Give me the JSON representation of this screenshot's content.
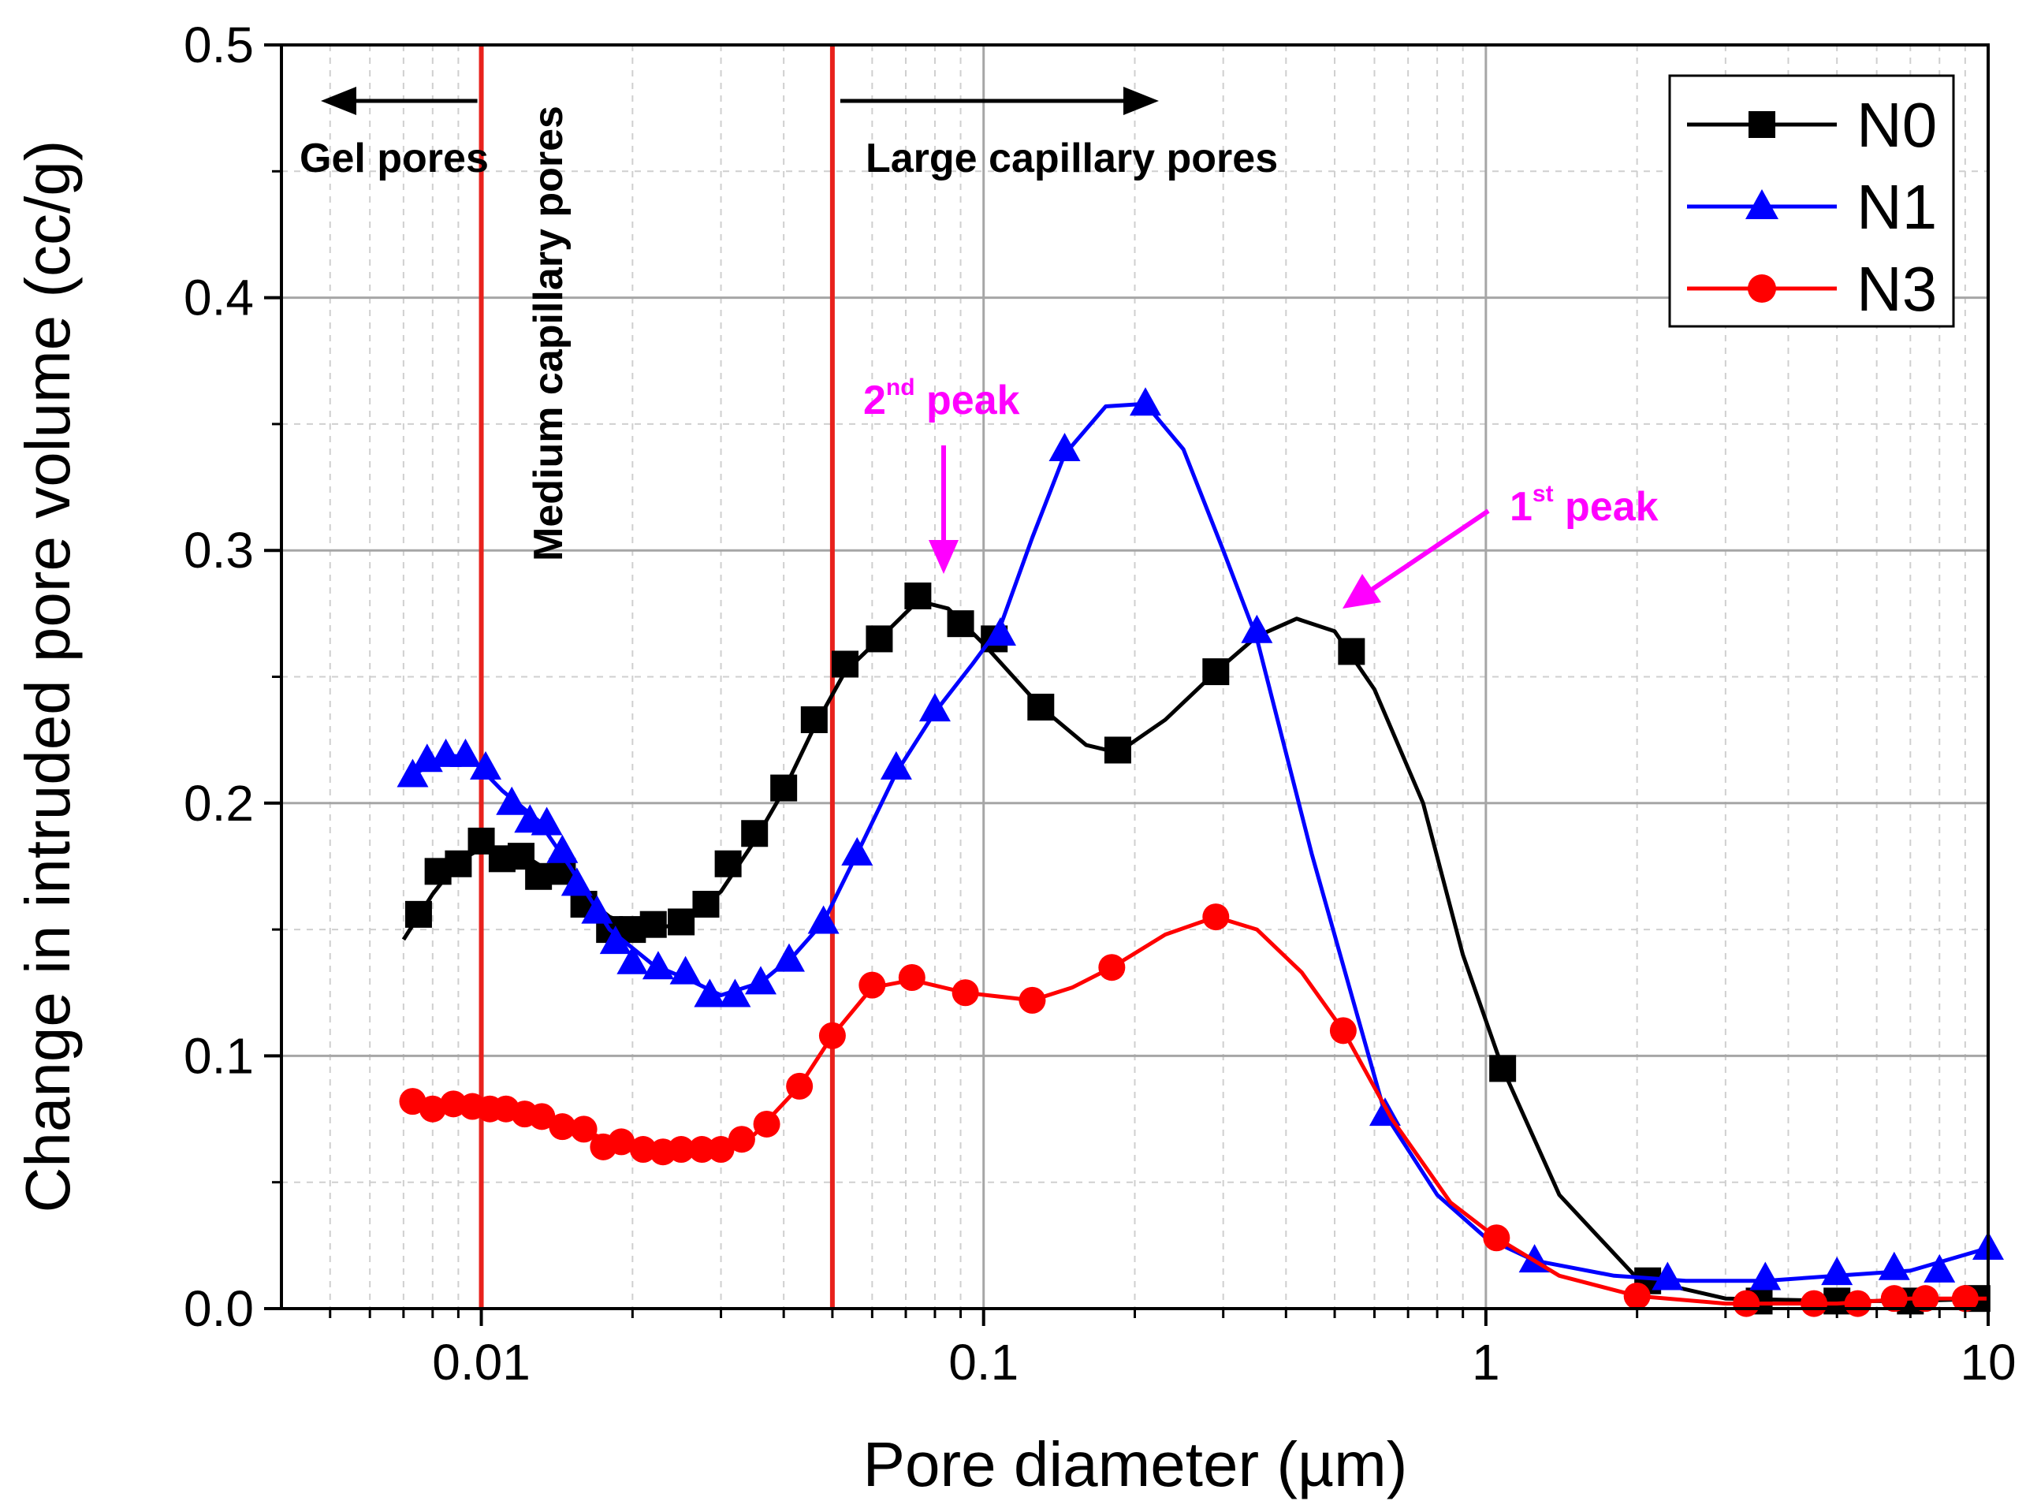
{
  "chart_data": {
    "type": "line",
    "title": "",
    "xlabel": "Pore diameter (µm)",
    "ylabel": "Change in intruded pore volume (cc/g)",
    "xscale": "log",
    "xlim": [
      0.004,
      10
    ],
    "ylim": [
      0.0,
      0.5
    ],
    "grid": true,
    "legend_position": "top-right",
    "x_tick_labels": [
      {
        "value": 0.01,
        "label": "0.01"
      },
      {
        "value": 0.1,
        "label": "0.1"
      },
      {
        "value": 1,
        "label": "1"
      },
      {
        "value": 10,
        "label": "10"
      }
    ],
    "y_tick_labels": [
      {
        "value": 0.0,
        "label": "0.0"
      },
      {
        "value": 0.1,
        "label": "0.1"
      },
      {
        "value": 0.2,
        "label": "0.2"
      },
      {
        "value": 0.3,
        "label": "0.3"
      },
      {
        "value": 0.4,
        "label": "0.4"
      },
      {
        "value": 0.5,
        "label": "0.5"
      }
    ],
    "boundaries": [
      {
        "x": 0.01,
        "color": "#e8211c"
      },
      {
        "x": 0.05,
        "color": "#e8211c"
      }
    ],
    "region_labels": {
      "gel": "Gel pores",
      "medium": "Medium capillary pores",
      "large": "Large capillary pores"
    },
    "peak_annotations": {
      "second": {
        "num": "2",
        "sup": "nd",
        "text": " peak",
        "color": "#ff00ff"
      },
      "first": {
        "num": "1",
        "sup": "st",
        "text": " peak",
        "color": "#ff00ff"
      }
    },
    "series": [
      {
        "name": "N0",
        "color": "#000000",
        "marker": "square",
        "points": [
          [
            0.0075,
            0.156
          ],
          [
            0.0082,
            0.173
          ],
          [
            0.009,
            0.176
          ],
          [
            0.01,
            0.185
          ],
          [
            0.011,
            0.178
          ],
          [
            0.012,
            0.179
          ],
          [
            0.013,
            0.171
          ],
          [
            0.0145,
            0.173
          ],
          [
            0.016,
            0.16
          ],
          [
            0.018,
            0.15
          ],
          [
            0.02,
            0.15
          ],
          [
            0.022,
            0.152
          ],
          [
            0.025,
            0.153
          ],
          [
            0.028,
            0.16
          ],
          [
            0.031,
            0.176
          ],
          [
            0.035,
            0.188
          ],
          [
            0.04,
            0.206
          ],
          [
            0.046,
            0.233
          ],
          [
            0.053,
            0.255
          ],
          [
            0.062,
            0.265
          ],
          [
            0.074,
            0.282
          ],
          [
            0.09,
            0.271
          ],
          [
            0.105,
            0.265
          ],
          [
            0.13,
            0.238
          ],
          [
            0.185,
            0.221
          ],
          [
            0.29,
            0.252
          ],
          [
            0.54,
            0.26
          ],
          [
            1.08,
            0.095
          ],
          [
            2.1,
            0.011
          ],
          [
            3.5,
            0.003
          ],
          [
            5.0,
            0.003
          ],
          [
            7.0,
            0.003
          ],
          [
            9.5,
            0.004
          ]
        ],
        "curve": [
          [
            0.007,
            0.146
          ],
          [
            0.008,
            0.164
          ],
          [
            0.009,
            0.177
          ],
          [
            0.01,
            0.182
          ],
          [
            0.012,
            0.18
          ],
          [
            0.015,
            0.168
          ],
          [
            0.018,
            0.155
          ],
          [
            0.021,
            0.15
          ],
          [
            0.025,
            0.152
          ],
          [
            0.03,
            0.165
          ],
          [
            0.035,
            0.185
          ],
          [
            0.04,
            0.205
          ],
          [
            0.046,
            0.23
          ],
          [
            0.053,
            0.252
          ],
          [
            0.062,
            0.265
          ],
          [
            0.074,
            0.28
          ],
          [
            0.085,
            0.277
          ],
          [
            0.1,
            0.263
          ],
          [
            0.13,
            0.238
          ],
          [
            0.16,
            0.223
          ],
          [
            0.185,
            0.22
          ],
          [
            0.23,
            0.233
          ],
          [
            0.29,
            0.252
          ],
          [
            0.35,
            0.266
          ],
          [
            0.42,
            0.273
          ],
          [
            0.5,
            0.268
          ],
          [
            0.6,
            0.245
          ],
          [
            0.75,
            0.2
          ],
          [
            0.9,
            0.14
          ],
          [
            1.08,
            0.095
          ],
          [
            1.4,
            0.045
          ],
          [
            2.0,
            0.012
          ],
          [
            3.0,
            0.004
          ],
          [
            5.0,
            0.003
          ],
          [
            7.0,
            0.003
          ],
          [
            10.0,
            0.004
          ]
        ]
      },
      {
        "name": "N1",
        "color": "#0000ff",
        "marker": "triangle",
        "points": [
          [
            0.0073,
            0.211
          ],
          [
            0.0078,
            0.217
          ],
          [
            0.0085,
            0.219
          ],
          [
            0.0093,
            0.219
          ],
          [
            0.0102,
            0.214
          ],
          [
            0.0115,
            0.2
          ],
          [
            0.0125,
            0.193
          ],
          [
            0.0135,
            0.192
          ],
          [
            0.0145,
            0.181
          ],
          [
            0.0155,
            0.168
          ],
          [
            0.017,
            0.157
          ],
          [
            0.0185,
            0.145
          ],
          [
            0.02,
            0.137
          ],
          [
            0.0225,
            0.135
          ],
          [
            0.0255,
            0.133
          ],
          [
            0.0285,
            0.124
          ],
          [
            0.032,
            0.124
          ],
          [
            0.036,
            0.129
          ],
          [
            0.041,
            0.138
          ],
          [
            0.048,
            0.153
          ],
          [
            0.056,
            0.18
          ],
          [
            0.067,
            0.214
          ],
          [
            0.08,
            0.237
          ],
          [
            0.108,
            0.267
          ],
          [
            0.145,
            0.34
          ],
          [
            0.21,
            0.358
          ],
          [
            0.35,
            0.268
          ],
          [
            0.63,
            0.077
          ],
          [
            1.25,
            0.019
          ],
          [
            2.3,
            0.012
          ],
          [
            3.6,
            0.012
          ],
          [
            5.0,
            0.014
          ],
          [
            6.5,
            0.016
          ],
          [
            8.0,
            0.015
          ],
          [
            10.0,
            0.024
          ]
        ],
        "curve": [
          [
            0.0073,
            0.211
          ],
          [
            0.0085,
            0.219
          ],
          [
            0.0095,
            0.218
          ],
          [
            0.011,
            0.205
          ],
          [
            0.013,
            0.193
          ],
          [
            0.015,
            0.175
          ],
          [
            0.018,
            0.15
          ],
          [
            0.022,
            0.136
          ],
          [
            0.026,
            0.13
          ],
          [
            0.03,
            0.124
          ],
          [
            0.036,
            0.129
          ],
          [
            0.042,
            0.14
          ],
          [
            0.048,
            0.153
          ],
          [
            0.056,
            0.18
          ],
          [
            0.067,
            0.212
          ],
          [
            0.08,
            0.236
          ],
          [
            0.095,
            0.255
          ],
          [
            0.108,
            0.27
          ],
          [
            0.125,
            0.305
          ],
          [
            0.145,
            0.338
          ],
          [
            0.175,
            0.357
          ],
          [
            0.21,
            0.358
          ],
          [
            0.25,
            0.34
          ],
          [
            0.3,
            0.3
          ],
          [
            0.35,
            0.265
          ],
          [
            0.45,
            0.18
          ],
          [
            0.63,
            0.077
          ],
          [
            0.8,
            0.045
          ],
          [
            1.0,
            0.028
          ],
          [
            1.25,
            0.019
          ],
          [
            1.8,
            0.013
          ],
          [
            2.5,
            0.011
          ],
          [
            3.6,
            0.011
          ],
          [
            5.0,
            0.013
          ],
          [
            7.0,
            0.015
          ],
          [
            10.0,
            0.024
          ]
        ]
      },
      {
        "name": "N3",
        "color": "#ff0000",
        "marker": "circle",
        "points": [
          [
            0.0073,
            0.082
          ],
          [
            0.008,
            0.079
          ],
          [
            0.0088,
            0.081
          ],
          [
            0.0096,
            0.08
          ],
          [
            0.0104,
            0.079
          ],
          [
            0.0112,
            0.079
          ],
          [
            0.0122,
            0.077
          ],
          [
            0.0132,
            0.076
          ],
          [
            0.0145,
            0.072
          ],
          [
            0.016,
            0.071
          ],
          [
            0.0175,
            0.064
          ],
          [
            0.019,
            0.066
          ],
          [
            0.021,
            0.063
          ],
          [
            0.023,
            0.062
          ],
          [
            0.025,
            0.063
          ],
          [
            0.0275,
            0.063
          ],
          [
            0.03,
            0.063
          ],
          [
            0.033,
            0.067
          ],
          [
            0.037,
            0.073
          ],
          [
            0.043,
            0.088
          ],
          [
            0.05,
            0.108
          ],
          [
            0.06,
            0.128
          ],
          [
            0.072,
            0.131
          ],
          [
            0.092,
            0.125
          ],
          [
            0.125,
            0.122
          ],
          [
            0.18,
            0.135
          ],
          [
            0.29,
            0.155
          ],
          [
            0.52,
            0.11
          ],
          [
            1.05,
            0.028
          ],
          [
            2.0,
            0.005
          ],
          [
            3.3,
            0.002
          ],
          [
            4.5,
            0.002
          ],
          [
            5.5,
            0.002
          ],
          [
            6.5,
            0.004
          ],
          [
            7.5,
            0.004
          ],
          [
            9.0,
            0.004
          ]
        ],
        "curve": [
          [
            0.0073,
            0.082
          ],
          [
            0.009,
            0.08
          ],
          [
            0.011,
            0.079
          ],
          [
            0.013,
            0.076
          ],
          [
            0.016,
            0.07
          ],
          [
            0.02,
            0.064
          ],
          [
            0.025,
            0.062
          ],
          [
            0.03,
            0.063
          ],
          [
            0.035,
            0.069
          ],
          [
            0.043,
            0.088
          ],
          [
            0.05,
            0.108
          ],
          [
            0.06,
            0.127
          ],
          [
            0.072,
            0.13
          ],
          [
            0.092,
            0.125
          ],
          [
            0.125,
            0.122
          ],
          [
            0.15,
            0.127
          ],
          [
            0.18,
            0.135
          ],
          [
            0.23,
            0.148
          ],
          [
            0.29,
            0.155
          ],
          [
            0.35,
            0.15
          ],
          [
            0.43,
            0.133
          ],
          [
            0.52,
            0.11
          ],
          [
            0.65,
            0.075
          ],
          [
            0.85,
            0.042
          ],
          [
            1.05,
            0.028
          ],
          [
            1.4,
            0.013
          ],
          [
            2.0,
            0.005
          ],
          [
            3.0,
            0.002
          ],
          [
            5.0,
            0.002
          ],
          [
            7.0,
            0.004
          ],
          [
            10.0,
            0.004
          ]
        ]
      }
    ]
  }
}
